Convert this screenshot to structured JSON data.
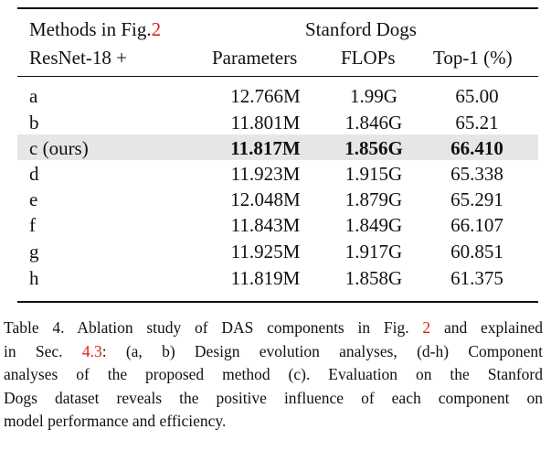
{
  "header": {
    "methods_prefix": "Methods in Fig.",
    "methods_ref": "2",
    "backbone": "ResNet-18 +",
    "dataset": "Stanford Dogs",
    "col_params": "Parameters",
    "col_flops": "FLOPs",
    "col_top1": "Top-1 (%)"
  },
  "rows": [
    {
      "label": "a",
      "params": "12.766M",
      "flops": "1.99G",
      "top1": "65.00"
    },
    {
      "label": "b",
      "params": "11.801M",
      "flops": "1.846G",
      "top1": "65.21"
    },
    {
      "label": "c (ours)",
      "params": "11.817M",
      "flops": "1.856G",
      "top1": "66.410"
    },
    {
      "label": "d",
      "params": "11.923M",
      "flops": "1.915G",
      "top1": "65.338"
    },
    {
      "label": "e",
      "params": "12.048M",
      "flops": "1.879G",
      "top1": "65.291"
    },
    {
      "label": "f",
      "params": "11.843M",
      "flops": "1.849G",
      "top1": "66.107"
    },
    {
      "label": "g",
      "params": "11.925M",
      "flops": "1.917G",
      "top1": "60.851"
    },
    {
      "label": "h",
      "params": "11.819M",
      "flops": "1.858G",
      "top1": "61.375"
    }
  ],
  "caption": {
    "l1_a": "Table 4. Ablation study of DAS components in Fig.",
    "l1_ref": "2",
    "l1_b": "and explained",
    "l2_a": "in Sec.",
    "l2_ref": "4.3",
    "l2_b": ": (a, b) Design evolution analyses, (d-h) Component",
    "l3": "analyses of the proposed method (c). Evaluation on the Stanford",
    "l4": "Dogs dataset reveals the positive influence of each component on",
    "l5": "model performance and efficiency."
  },
  "colors": {
    "ref": "#e0201c",
    "highlight": "#e6e6e6"
  }
}
